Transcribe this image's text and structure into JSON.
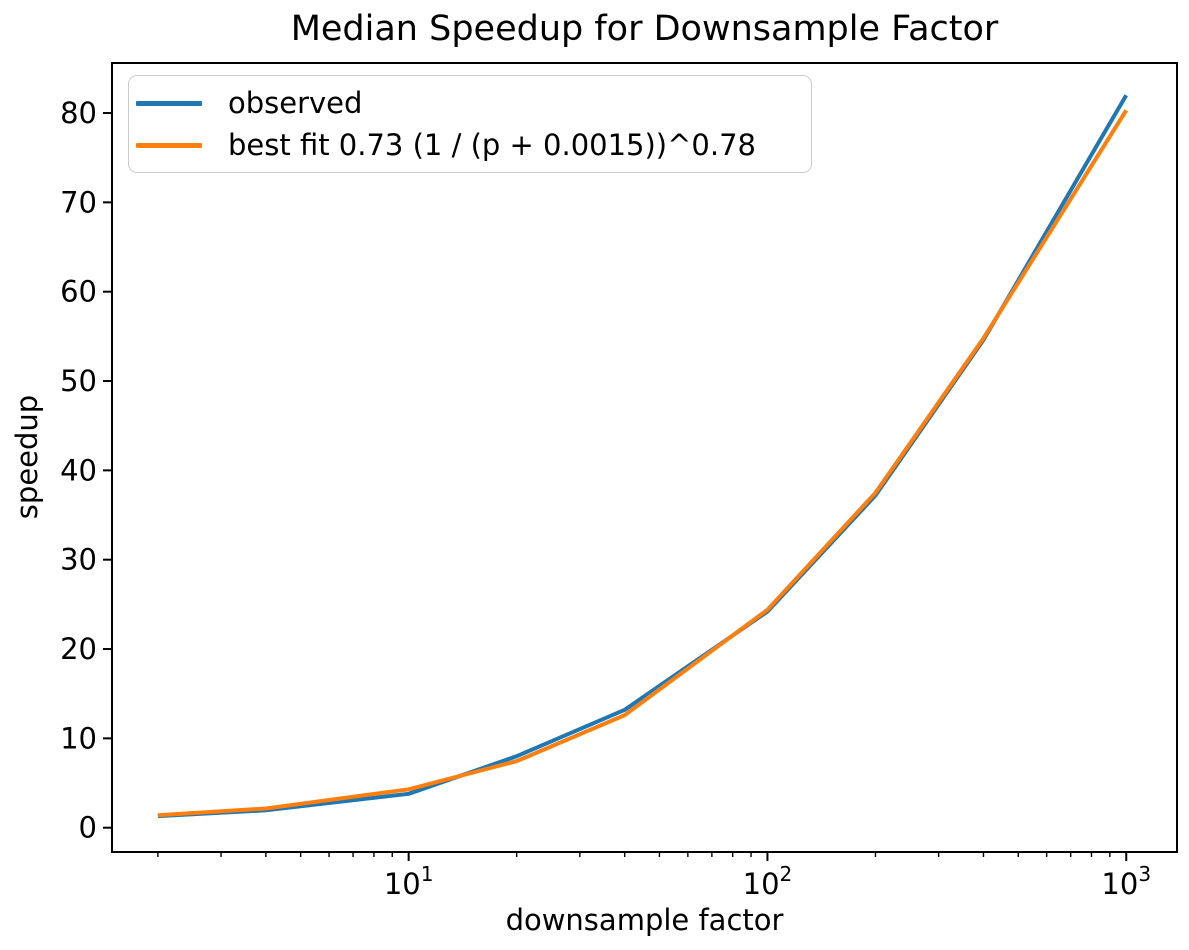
{
  "chart_data": {
    "type": "line",
    "title": "Median Speedup for Downsample Factor",
    "xlabel": "downsample factor",
    "ylabel": "speedup",
    "x_scale": "log",
    "grid": false,
    "x_range": [
      1.49,
      1385
    ],
    "y_range": [
      -2.72,
      85.6
    ],
    "x_major_ticks": [
      10,
      100,
      1000
    ],
    "x_major_tick_labels": [
      "10^1",
      "10^2",
      "10^3"
    ],
    "x_minor_ticks": [
      2,
      3,
      4,
      5,
      6,
      7,
      8,
      9,
      20,
      30,
      40,
      50,
      60,
      70,
      80,
      90,
      200,
      300,
      400,
      500,
      600,
      700,
      800,
      900
    ],
    "y_ticks": [
      0,
      10,
      20,
      30,
      40,
      50,
      60,
      70,
      80
    ],
    "legend_position": "upper left",
    "series": [
      {
        "name": "observed",
        "color": "#1f77b4",
        "x": [
          2,
          4,
          10,
          20,
          40,
          100,
          200,
          400,
          1000
        ],
        "y": [
          1.3,
          1.95,
          3.8,
          8.0,
          13.2,
          24.2,
          37.2,
          54.6,
          82.0
        ]
      },
      {
        "name": "best fit 0.73 (1 / (p + 0.0015))^0.78",
        "color": "#ff7f0e",
        "x": [
          2,
          4,
          10,
          20,
          40,
          100,
          200,
          400,
          1000
        ],
        "y": [
          1.4,
          2.15,
          4.3,
          7.45,
          12.6,
          24.4,
          37.5,
          54.8,
          80.3
        ]
      }
    ]
  }
}
